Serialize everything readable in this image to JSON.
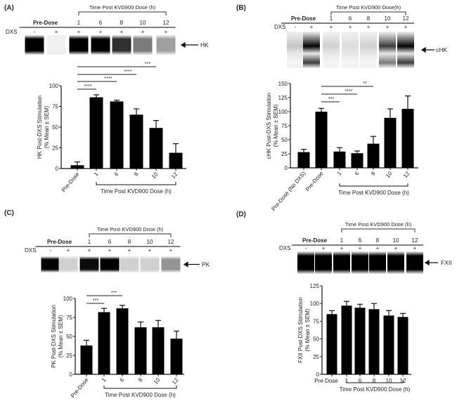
{
  "chart_data": [
    {
      "type": "bar",
      "panel_label": "(A)",
      "blot": {
        "pre_dose_label": "Pre-Dose",
        "time_label": "Time Post KVD900 Dose (h)",
        "times": [
          "1",
          "6",
          "8",
          "10",
          "12"
        ],
        "dxs_label": "DXS",
        "dxs": [
          "-",
          "+",
          "+",
          "+",
          "+",
          "+",
          "+"
        ],
        "band_label": "HK",
        "band_intensity": [
          1,
          0.02,
          1,
          1,
          0.8,
          0.5,
          0.35
        ]
      },
      "ylabel": [
        "HK Post-DXS Stimulation",
        "(% Mean ± SEM)"
      ],
      "yticks": [
        "0",
        "25",
        "50",
        "75",
        "100"
      ],
      "ylim": [
        0,
        100
      ],
      "categories": [
        "Pre-Dose",
        "1",
        "6",
        "8",
        "10",
        "12"
      ],
      "values": [
        4,
        86,
        81,
        65,
        49,
        19
      ],
      "errors": [
        4,
        3,
        1.5,
        7,
        9,
        11
      ],
      "xgroup_label": "Time Post KVD900 Dose (h)",
      "significance": [
        {
          "from": "Pre-Dose",
          "to": "1",
          "label": "****"
        },
        {
          "from": "Pre-Dose",
          "to": "6",
          "label": "****"
        },
        {
          "from": "Pre-Dose",
          "to": "8",
          "label": "****"
        },
        {
          "from": "Pre-Dose",
          "to": "10",
          "label": "***"
        }
      ]
    },
    {
      "type": "bar",
      "panel_label": "(B)",
      "blot": {
        "pre_dose_label": "Pre-Dose",
        "time_label": "Time Post KVD900 Dose(h)",
        "times": [
          "1",
          "6",
          "8",
          "10",
          "12"
        ],
        "dxs_label": "DXS",
        "dxs": [
          "-",
          "+",
          "+",
          "+",
          "+",
          "+",
          "+"
        ],
        "band_label": "cHK",
        "band_intensity": [
          0.2,
          1,
          0.15,
          0.1,
          0.15,
          0.75,
          1
        ]
      },
      "ylabel": [
        "cHK Post-DXS Stimulation",
        "(% Mean ± SEM)"
      ],
      "yticks": [
        "0",
        "25",
        "50",
        "75",
        "100",
        "125",
        "150"
      ],
      "ylim": [
        0,
        150
      ],
      "categories": [
        "Pre-Dose (No DXS)",
        "Pre-Dose",
        "1",
        "6",
        "8",
        "10",
        "12"
      ],
      "values": [
        28,
        100,
        29,
        26,
        43,
        89,
        105
      ],
      "errors": [
        5,
        6,
        7,
        4,
        13,
        16,
        23
      ],
      "xgroup_label": "Time Post KVD900 Dose (h)",
      "significance": [
        {
          "from": "Pre-Dose",
          "to": "1",
          "label": "***"
        },
        {
          "from": "Pre-Dose",
          "to": "6",
          "label": "****"
        },
        {
          "from": "Pre-Dose",
          "to": "8",
          "label": "**"
        }
      ]
    },
    {
      "type": "bar",
      "panel_label": "(C)",
      "blot": {
        "pre_dose_label": "Pre-Dose",
        "time_label": "Time Post KVD900 Dose (h)",
        "times": [
          "1",
          "6",
          "8",
          "10",
          "12"
        ],
        "dxs_label": "DXS",
        "dxs": [
          "-",
          "+",
          "+",
          "+",
          "+",
          "+",
          "+"
        ],
        "band_label": "PK",
        "band_intensity": [
          1,
          0.15,
          0.95,
          1,
          0.15,
          0.15,
          0.4
        ]
      },
      "ylabel": [
        "PK Post-DXS Stimulation",
        "(% Mean ± SEM)"
      ],
      "yticks": [
        "0",
        "25",
        "50",
        "75",
        "100"
      ],
      "ylim": [
        0,
        100
      ],
      "categories": [
        "Pre-Dose",
        "1",
        "6",
        "8",
        "10",
        "12"
      ],
      "values": [
        38,
        82,
        87,
        62,
        62,
        47
      ],
      "errors": [
        7,
        5,
        4,
        7,
        9,
        10
      ],
      "xgroup_label": "Time Post KVD900 Dose (h)",
      "significance": [
        {
          "from": "Pre-Dose",
          "to": "1",
          "label": "***"
        },
        {
          "from": "Pre-Dose",
          "to": "6",
          "label": "***"
        }
      ]
    },
    {
      "type": "bar",
      "panel_label": "(D)",
      "blot": {
        "pre_dose_label": "Pre-Dose",
        "time_label": "Time Post KVD900 Dose (h)",
        "times": [
          "1",
          "6",
          "8",
          "10",
          "12"
        ],
        "dxs_label": "DXS",
        "dxs": [
          "-",
          "+",
          "+",
          "+",
          "+",
          "+",
          "+"
        ],
        "band_label": "FXII",
        "band_intensity": [
          1,
          1,
          1,
          1,
          1,
          1,
          1
        ]
      },
      "ylabel": [
        "FXII Post-DXS Stimulation",
        "(% Mean ± SEM)"
      ],
      "yticks": [
        "0",
        "25",
        "50",
        "75",
        "100",
        "125"
      ],
      "ylim": [
        0,
        125
      ],
      "categories": [
        "Pre-Dose",
        "1",
        "6",
        "8",
        "10",
        "12"
      ],
      "values": [
        85,
        97,
        94,
        92,
        83,
        81
      ],
      "errors": [
        5,
        6,
        5,
        8,
        7,
        5
      ],
      "xgroup_label": "Time Post KVD900 Dose (h)",
      "significance": []
    }
  ]
}
